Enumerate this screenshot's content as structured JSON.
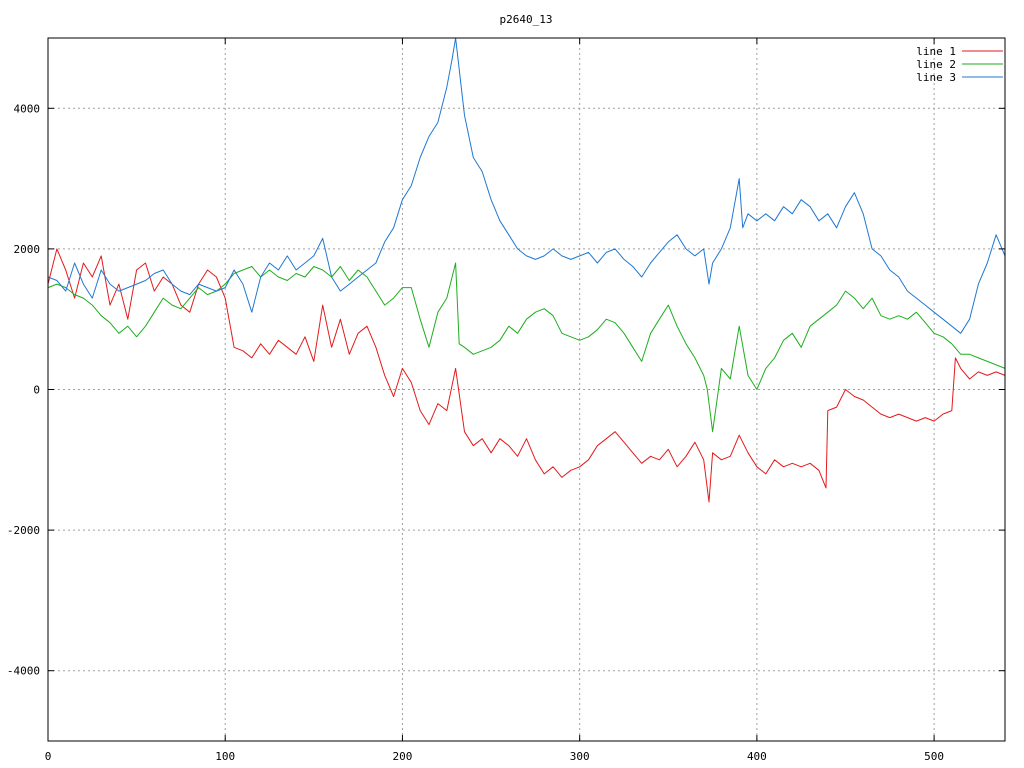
{
  "chart_data": {
    "type": "line",
    "title": "p2640_13",
    "xlabel": "",
    "ylabel": "",
    "xlim": [
      0,
      540
    ],
    "ylim": [
      -5000,
      5000
    ],
    "xticks": [
      0,
      100,
      200,
      300,
      400,
      500
    ],
    "yticks": [
      -4000,
      -2000,
      0,
      2000,
      4000
    ],
    "ytick_labels": [
      "-4000",
      "-2000",
      "0",
      "2000",
      "4000"
    ],
    "grid": true,
    "legend_position": "top-right",
    "series": [
      {
        "name": "line 1",
        "color": "#e41a1c",
        "x": [
          0,
          5,
          10,
          15,
          20,
          25,
          30,
          35,
          40,
          45,
          50,
          55,
          60,
          65,
          70,
          75,
          80,
          85,
          90,
          95,
          100,
          105,
          110,
          115,
          120,
          125,
          130,
          135,
          140,
          145,
          150,
          155,
          160,
          165,
          170,
          175,
          180,
          185,
          190,
          195,
          200,
          205,
          210,
          215,
          220,
          225,
          230,
          235,
          240,
          245,
          250,
          255,
          260,
          265,
          270,
          275,
          280,
          285,
          290,
          295,
          300,
          305,
          310,
          315,
          320,
          325,
          330,
          335,
          340,
          345,
          350,
          355,
          360,
          365,
          370,
          373,
          375,
          380,
          385,
          390,
          395,
          400,
          405,
          410,
          415,
          420,
          425,
          430,
          435,
          439,
          440,
          445,
          450,
          455,
          460,
          465,
          470,
          475,
          480,
          485,
          490,
          495,
          500,
          505,
          510,
          512,
          515,
          520,
          525,
          530,
          535,
          540
        ],
        "y": [
          1500,
          2000,
          1700,
          1300,
          1800,
          1600,
          1900,
          1200,
          1500,
          1000,
          1700,
          1800,
          1400,
          1600,
          1500,
          1200,
          1100,
          1500,
          1700,
          1600,
          1300,
          600,
          550,
          450,
          650,
          500,
          700,
          600,
          500,
          750,
          400,
          1200,
          600,
          1000,
          500,
          800,
          900,
          600,
          200,
          -100,
          300,
          100,
          -300,
          -500,
          -200,
          -300,
          300,
          -600,
          -800,
          -700,
          -900,
          -700,
          -800,
          -950,
          -700,
          -1000,
          -1200,
          -1100,
          -1250,
          -1150,
          -1100,
          -1000,
          -800,
          -700,
          -600,
          -750,
          -900,
          -1050,
          -950,
          -1000,
          -850,
          -1100,
          -950,
          -750,
          -1000,
          -1600,
          -900,
          -1000,
          -950,
          -650,
          -900,
          -1100,
          -1200,
          -1000,
          -1100,
          -1050,
          -1100,
          -1050,
          -1150,
          -1400,
          -300,
          -250,
          0,
          -100,
          -150,
          -250,
          -350,
          -400,
          -350,
          -400,
          -450,
          -400,
          -450,
          -350,
          -300,
          450,
          300,
          150,
          250,
          200,
          250,
          200
        ]
      },
      {
        "name": "line 2",
        "color": "#1eae1e",
        "x": [
          0,
          5,
          10,
          15,
          20,
          25,
          30,
          35,
          40,
          45,
          50,
          55,
          60,
          65,
          70,
          75,
          80,
          85,
          90,
          95,
          100,
          105,
          110,
          115,
          120,
          125,
          130,
          135,
          140,
          145,
          150,
          155,
          160,
          165,
          170,
          175,
          180,
          185,
          190,
          195,
          200,
          205,
          210,
          215,
          220,
          225,
          230,
          232,
          235,
          240,
          245,
          250,
          255,
          260,
          265,
          270,
          275,
          280,
          285,
          290,
          295,
          300,
          305,
          310,
          315,
          320,
          325,
          330,
          335,
          340,
          345,
          350,
          355,
          360,
          365,
          370,
          372,
          375,
          380,
          385,
          390,
          395,
          400,
          405,
          410,
          415,
          420,
          425,
          430,
          435,
          440,
          445,
          450,
          455,
          460,
          465,
          470,
          475,
          480,
          485,
          490,
          495,
          500,
          505,
          510,
          515,
          520,
          525,
          530,
          535,
          540
        ],
        "y": [
          1450,
          1500,
          1450,
          1350,
          1300,
          1200,
          1050,
          950,
          800,
          900,
          750,
          900,
          1100,
          1300,
          1200,
          1150,
          1300,
          1450,
          1350,
          1400,
          1500,
          1650,
          1700,
          1750,
          1600,
          1700,
          1600,
          1550,
          1650,
          1600,
          1750,
          1700,
          1600,
          1750,
          1550,
          1700,
          1600,
          1400,
          1200,
          1300,
          1450,
          1450,
          1000,
          600,
          1100,
          1300,
          1800,
          650,
          600,
          500,
          550,
          600,
          700,
          900,
          800,
          1000,
          1100,
          1150,
          1050,
          800,
          750,
          700,
          750,
          850,
          1000,
          950,
          800,
          600,
          400,
          800,
          1000,
          1200,
          900,
          650,
          450,
          200,
          0,
          -600,
          300,
          150,
          900,
          200,
          0,
          300,
          450,
          700,
          800,
          600,
          900,
          1000,
          1100,
          1200,
          1400,
          1300,
          1150,
          1300,
          1050,
          1000,
          1050,
          1000,
          1100,
          950,
          800,
          750,
          650,
          500,
          500,
          450,
          400,
          350,
          300
        ]
      },
      {
        "name": "line 3",
        "color": "#1f78d4",
        "x": [
          0,
          5,
          10,
          15,
          20,
          25,
          30,
          35,
          40,
          45,
          50,
          55,
          60,
          65,
          70,
          75,
          80,
          85,
          90,
          95,
          100,
          105,
          110,
          115,
          120,
          125,
          130,
          135,
          140,
          145,
          150,
          155,
          160,
          165,
          170,
          175,
          180,
          185,
          190,
          195,
          200,
          205,
          210,
          215,
          220,
          225,
          228,
          230,
          235,
          240,
          245,
          250,
          255,
          260,
          265,
          270,
          275,
          280,
          285,
          290,
          295,
          300,
          305,
          310,
          315,
          320,
          325,
          330,
          335,
          340,
          345,
          350,
          355,
          360,
          365,
          370,
          373,
          375,
          380,
          385,
          390,
          392,
          395,
          400,
          405,
          410,
          415,
          420,
          425,
          430,
          435,
          440,
          445,
          450,
          455,
          460,
          465,
          470,
          475,
          480,
          485,
          490,
          495,
          500,
          505,
          510,
          515,
          520,
          525,
          530,
          535,
          540
        ],
        "y": [
          1600,
          1550,
          1400,
          1800,
          1500,
          1300,
          1700,
          1500,
          1400,
          1450,
          1500,
          1550,
          1650,
          1700,
          1500,
          1400,
          1350,
          1500,
          1450,
          1400,
          1450,
          1700,
          1500,
          1100,
          1600,
          1800,
          1700,
          1900,
          1700,
          1800,
          1900,
          2150,
          1600,
          1400,
          1500,
          1600,
          1700,
          1800,
          2100,
          2300,
          2700,
          2900,
          3300,
          3600,
          3800,
          4300,
          4700,
          5000,
          3900,
          3300,
          3100,
          2700,
          2400,
          2200,
          2000,
          1900,
          1850,
          1900,
          2000,
          1900,
          1850,
          1900,
          1950,
          1800,
          1950,
          2000,
          1850,
          1750,
          1600,
          1800,
          1950,
          2100,
          2200,
          2000,
          1900,
          2000,
          1500,
          1800,
          2000,
          2300,
          3000,
          2300,
          2500,
          2400,
          2500,
          2400,
          2600,
          2500,
          2700,
          2600,
          2400,
          2500,
          2300,
          2600,
          2800,
          2500,
          2000,
          1900,
          1700,
          1600,
          1400,
          1300,
          1200,
          1100,
          1000,
          900,
          800,
          1000,
          1500,
          1800,
          2200,
          1900
        ]
      }
    ]
  }
}
